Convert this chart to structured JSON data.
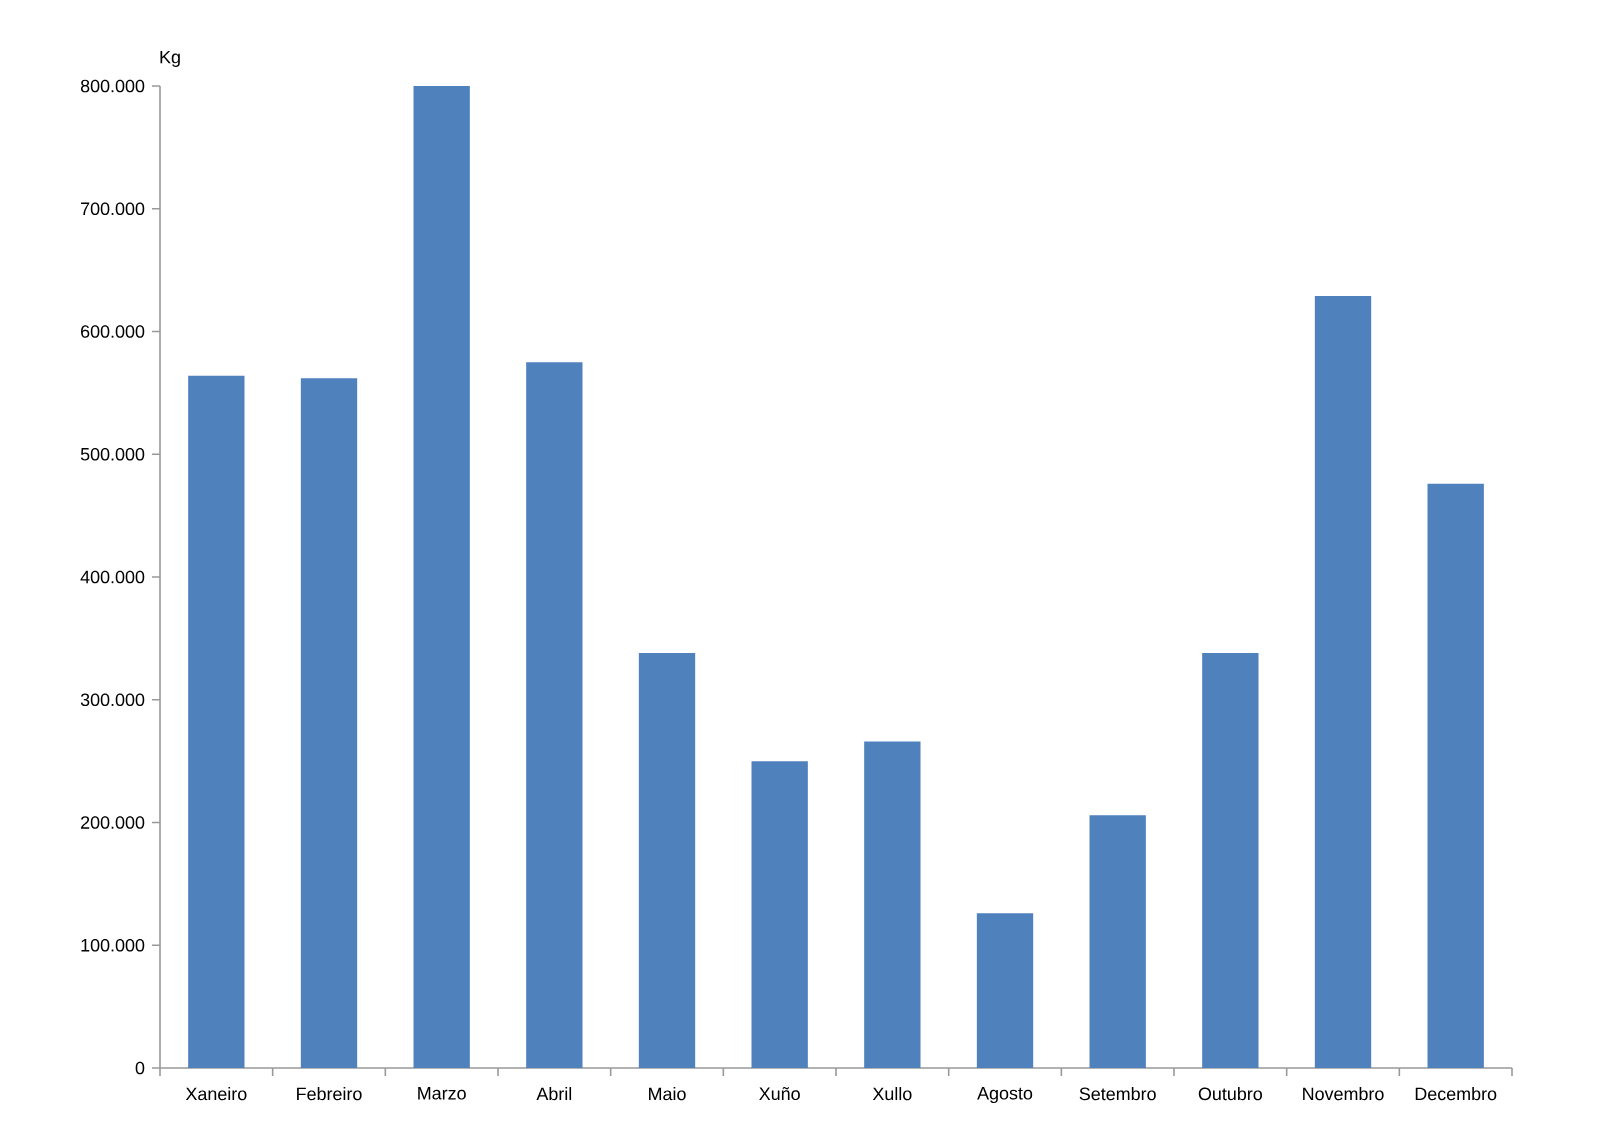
{
  "chart_data": {
    "type": "bar",
    "ylabel": "Kg",
    "categories": [
      "Xaneiro",
      "Febreiro",
      "Marzo",
      "Abril",
      "Maio",
      "Xuño",
      "Xullo",
      "Agosto",
      "Setembro",
      "Outubro",
      "Novembro",
      "Decembro"
    ],
    "values": [
      564000,
      562000,
      800000,
      575000,
      338000,
      250000,
      266000,
      126000,
      206000,
      338000,
      629000,
      476000
    ],
    "color": "#4f81bd",
    "ylim": [
      0,
      800000
    ],
    "yticks": [
      0,
      {
        "value": 100000,
        "label": "100.000"
      },
      {
        "value": 200000,
        "label": "200.000"
      },
      {
        "value": 300000,
        "label": "300.000"
      },
      {
        "value": 400000,
        "label": "400.000"
      },
      {
        "value": 500000,
        "label": "500.000"
      },
      {
        "value": 600000,
        "label": "600.000"
      },
      {
        "value": 700000,
        "label": "700.000"
      },
      {
        "value": 800000,
        "label": "800.000"
      }
    ]
  }
}
